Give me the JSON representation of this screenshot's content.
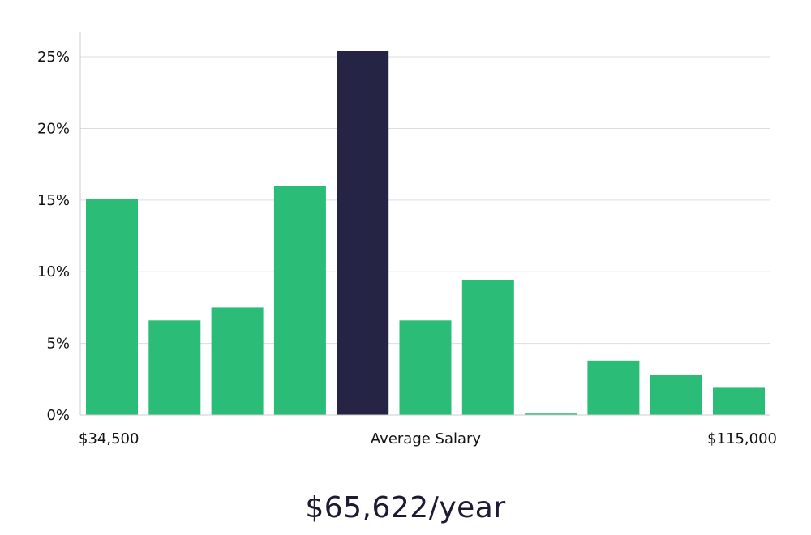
{
  "chart_data": {
    "type": "bar",
    "values": [
      15.1,
      6.6,
      7.5,
      16.0,
      25.4,
      6.6,
      9.4,
      0.1,
      3.8,
      2.8,
      1.9
    ],
    "highlight_index": 4,
    "ylim": [
      0,
      26.7
    ],
    "yticks": [
      0,
      5,
      10,
      15,
      20,
      25
    ],
    "ytick_labels": [
      "0%",
      "5%",
      "10%",
      "15%",
      "20%",
      "25%"
    ],
    "x_labels": {
      "min": "$34,500",
      "middle": "Average Salary",
      "max": "$115,000"
    },
    "grid": true,
    "colors": {
      "bar": "#2bbd77",
      "highlight": "#262444",
      "grid": "#dddddd",
      "axis": "#cccccc"
    }
  },
  "summary": {
    "average_salary": "$65,622/year"
  }
}
